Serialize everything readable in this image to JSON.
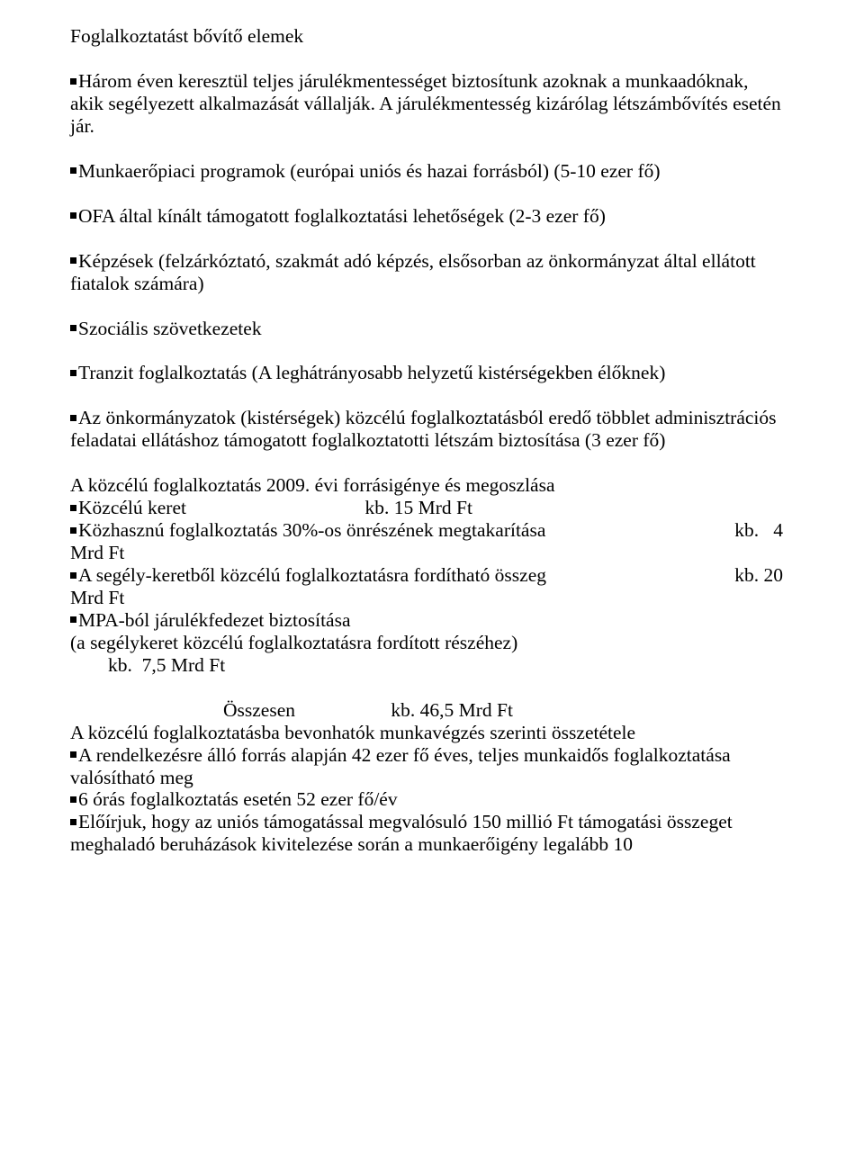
{
  "heading": "Foglalkoztatást bővítő elemek",
  "p1_a": "Három éven keresztül teljes járulékmentességet biztosítunk azoknak a munkaadóknak, akik segélyezett alkalmazását vállalják. A járulékmentesség kizárólag létszámbővítés esetén jár.",
  "p2": "Munkaerőpiaci programok (európai uniós és hazai forrásból) (5-10 ezer fő)",
  "p3": "OFA által kínált támogatott foglalkoztatási lehetőségek (2-3 ezer fő)",
  "p4": "Képzések (felzárkóztató, szakmát adó képzés, elsősorban az önkormányzat által ellátott fiatalok számára)",
  "p5": "Szociális szövetkezetek",
  "p6": "Tranzit foglalkoztatás (A leghátrányosabb helyzetű kistérségekben élőknek)",
  "p7": "Az önkormányzatok (kistérségek) közcélú foglalkoztatásból eredő többlet adminisztrációs feladatai ellátáshoz támogatott foglalkoztatotti létszám biztosítása (3 ezer fő)",
  "sec2_title": "A közcélú foglalkoztatás 2009. évi forrásigénye és megoszlása",
  "li1_left": "Közcélú keret",
  "li1_right": "kb. 15 Mrd Ft",
  "li2_left": "Közhasznú foglalkoztatás 30%-os önrészének megtakarítása",
  "li2_right": "kb.   4",
  "li2_wrap": "Mrd Ft",
  "li3_left": "A segély-keretből közcélú foglalkoztatásra fordítható összeg",
  "li3_right": "kb. 20",
  "li3_wrap": "Mrd Ft",
  "li4_a": "MPA-ból járulékfedezet biztosítása",
  "li4_b": "(a segélykeret közcélú foglalkoztatásra fordított részéhez)",
  "li4_c": "kb.  7,5 Mrd Ft",
  "sum_left": "Összesen",
  "sum_right": "kb. 46,5 Mrd Ft",
  "sec3_title": "A közcélú foglalkoztatásba bevonhatók  munkavégzés szerinti összetétele",
  "s3_1": "A rendelkezésre álló forrás alapján 42 ezer fő éves, teljes munkaidős foglalkoztatása valósítható meg",
  "s3_2": "6 órás foglalkoztatás esetén 52 ezer fő/év",
  "s3_3": "Előírjuk, hogy az uniós támogatással megvalósuló 150 millió Ft támogatási összeget meghaladó beruházások kivitelezése során a munkaerőigény legalább 10"
}
